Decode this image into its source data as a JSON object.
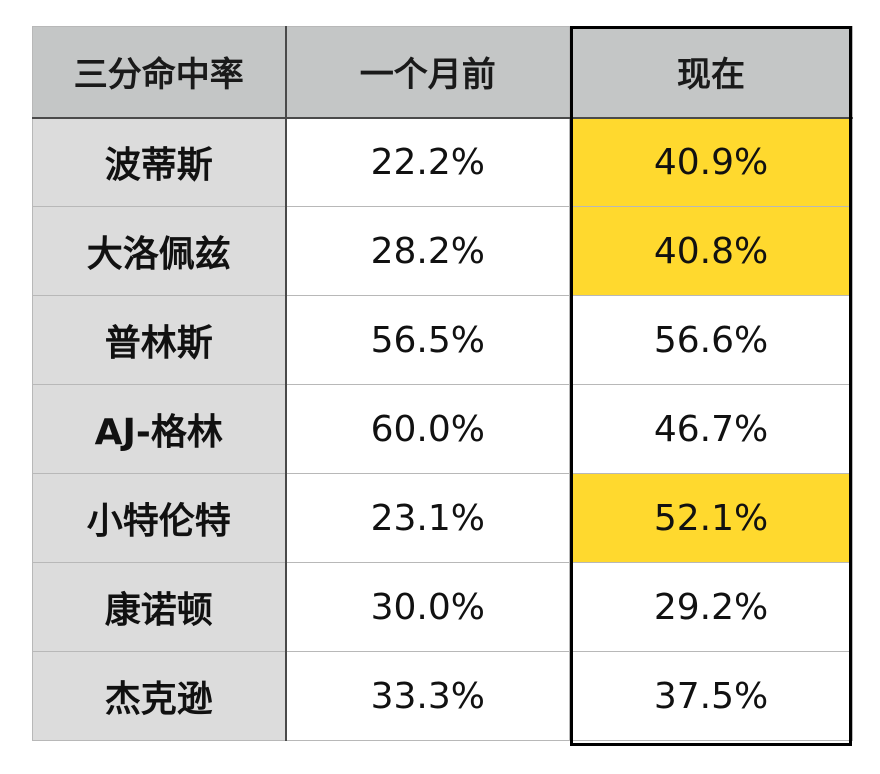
{
  "table": {
    "headers": [
      "三分命中率",
      "一个月前",
      "现在"
    ],
    "rows": [
      {
        "name": "波蒂斯",
        "before": "22.2%",
        "now": "40.9%",
        "highlight": true
      },
      {
        "name": "大洛佩兹",
        "before": "28.2%",
        "now": "40.8%",
        "highlight": true
      },
      {
        "name": "普林斯",
        "before": "56.5%",
        "now": "56.6%",
        "highlight": false
      },
      {
        "name": "AJ-格林",
        "before": "60.0%",
        "now": "46.7%",
        "highlight": false
      },
      {
        "name": "小特伦特",
        "before": "23.1%",
        "now": "52.1%",
        "highlight": true
      },
      {
        "name": "康诺顿",
        "before": "30.0%",
        "now": "29.2%",
        "highlight": false
      },
      {
        "name": "杰克逊",
        "before": "33.3%",
        "now": "37.5%",
        "highlight": false
      }
    ]
  },
  "colors": {
    "header_bg": "#c4c6c6",
    "name_bg": "#dcdcdc",
    "highlight": "#ffd92e",
    "box_border": "#000000"
  }
}
